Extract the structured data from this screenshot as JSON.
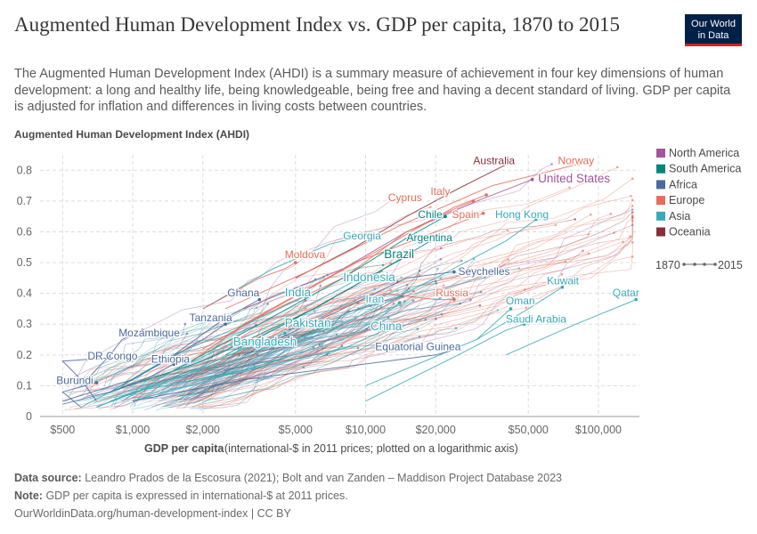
{
  "header": {
    "title": "Augmented Human Development Index vs. GDP per capita, 1870 to 2015",
    "subtitle": "The Augmented Human Development Index (AHDI) is a summary measure of achievement in four key dimensions of human development: a long and healthy life, being knowledgeable, being free and having a decent standard of living. GDP per capita is adjusted for inflation and differences in living costs between countries.",
    "logo_line1": "Our World",
    "logo_line2": "in Data"
  },
  "footer": {
    "source_label": "Data source:",
    "source_text": "Leandro Prados de la Escosura (2021); Bolt and van Zanden – Maddison Project Database 2023",
    "note_label": "Note:",
    "note_text": "GDP per capita is expressed in international-$ at 2011 prices.",
    "credit": "OurWorldinData.org/human-development-index | CC BY"
  },
  "chart_data": {
    "type": "scatter",
    "title": "Augmented Human Development Index vs. GDP per capita, 1870 to 2015",
    "ylabel": "Augmented Human Development Index (AHDI)",
    "xlabel": "GDP per capita",
    "xlabel_note": "(international-$ in 2011 prices; plotted on a logarithmic axis)",
    "x_scale": "log",
    "xlim": [
      400,
      150000
    ],
    "ylim": [
      0,
      0.85
    ],
    "x_ticks": [
      {
        "value": 500,
        "label": "$500"
      },
      {
        "value": 1000,
        "label": "$1,000"
      },
      {
        "value": 2000,
        "label": "$2,000"
      },
      {
        "value": 5000,
        "label": "$5,000"
      },
      {
        "value": 10000,
        "label": "$10,000"
      },
      {
        "value": 20000,
        "label": "$20,000"
      },
      {
        "value": 50000,
        "label": "$50,000"
      },
      {
        "value": 100000,
        "label": "$100,000"
      }
    ],
    "y_ticks": [
      {
        "value": 0,
        "label": "0"
      },
      {
        "value": 0.1,
        "label": "0.1"
      },
      {
        "value": 0.2,
        "label": "0.2"
      },
      {
        "value": 0.3,
        "label": "0.3"
      },
      {
        "value": 0.4,
        "label": "0.4"
      },
      {
        "value": 0.5,
        "label": "0.5"
      },
      {
        "value": 0.6,
        "label": "0.6"
      },
      {
        "value": 0.7,
        "label": "0.7"
      },
      {
        "value": 0.8,
        "label": "0.8"
      }
    ],
    "grid": true,
    "legend_position": "right",
    "legend": [
      {
        "name": "North America",
        "color": "#a2559c"
      },
      {
        "name": "South America",
        "color": "#00847e"
      },
      {
        "name": "Africa",
        "color": "#4c6a9c"
      },
      {
        "name": "Europe",
        "color": "#e56e5a"
      },
      {
        "name": "Asia",
        "color": "#38aaba"
      },
      {
        "name": "Oceania",
        "color": "#883039"
      }
    ],
    "time_legend": {
      "start": "1870",
      "end": "2015"
    },
    "series": [
      {
        "name": "Australia",
        "region": "Oceania",
        "x": [
          5000,
          9000,
          15000,
          25000,
          43000
        ],
        "y": [
          0.45,
          0.55,
          0.65,
          0.74,
          0.83
        ]
      },
      {
        "name": "Norway",
        "region": "Europe",
        "x": [
          2500,
          6000,
          14000,
          35000,
          82000
        ],
        "y": [
          0.35,
          0.48,
          0.62,
          0.75,
          0.82
        ]
      },
      {
        "name": "United States",
        "region": "North America",
        "x": [
          3000,
          8000,
          15000,
          30000,
          52000
        ],
        "y": [
          0.35,
          0.48,
          0.6,
          0.7,
          0.77
        ]
      },
      {
        "name": "Italy",
        "region": "Europe",
        "x": [
          2000,
          4000,
          12000,
          24000,
          33000
        ],
        "y": [
          0.22,
          0.35,
          0.55,
          0.68,
          0.72
        ]
      },
      {
        "name": "Cyprus",
        "region": "Europe",
        "x": [
          3000,
          8000,
          15000,
          25000,
          29000
        ],
        "y": [
          0.3,
          0.45,
          0.6,
          0.68,
          0.7
        ]
      },
      {
        "name": "Spain",
        "region": "Europe",
        "x": [
          1800,
          3000,
          9000,
          20000,
          32000
        ],
        "y": [
          0.18,
          0.3,
          0.5,
          0.6,
          0.66
        ]
      },
      {
        "name": "Chile",
        "region": "South America",
        "x": [
          1500,
          3500,
          8000,
          15000,
          22000
        ],
        "y": [
          0.15,
          0.3,
          0.45,
          0.58,
          0.65
        ]
      },
      {
        "name": "Hong Kong",
        "region": "Asia",
        "x": [
          3000,
          8000,
          20000,
          40000,
          54000
        ],
        "y": [
          0.2,
          0.3,
          0.45,
          0.57,
          0.64
        ]
      },
      {
        "name": "Georgia",
        "region": "Asia",
        "x": [
          2000,
          4000,
          7000,
          9000
        ],
        "y": [
          0.35,
          0.48,
          0.56,
          0.58
        ]
      },
      {
        "name": "Argentina",
        "region": "South America",
        "x": [
          2500,
          6000,
          12000,
          18000,
          19000
        ],
        "y": [
          0.2,
          0.35,
          0.48,
          0.56,
          0.57
        ]
      },
      {
        "name": "Brazil",
        "region": "South America",
        "x": [
          800,
          2000,
          6000,
          12000,
          15000
        ],
        "y": [
          0.08,
          0.18,
          0.35,
          0.48,
          0.52
        ]
      },
      {
        "name": "Moldova",
        "region": "Europe",
        "x": [
          2000,
          3500,
          4500,
          5000
        ],
        "y": [
          0.35,
          0.45,
          0.48,
          0.5
        ]
      },
      {
        "name": "Seychelles",
        "region": "Africa",
        "x": [
          3000,
          8000,
          15000,
          24000
        ],
        "y": [
          0.2,
          0.35,
          0.45,
          0.47
        ]
      },
      {
        "name": "Indonesia",
        "region": "Asia",
        "x": [
          900,
          1500,
          4000,
          8000,
          10000
        ],
        "y": [
          0.05,
          0.15,
          0.3,
          0.42,
          0.46
        ]
      },
      {
        "name": "Kuwait",
        "region": "Asia",
        "x": [
          30000,
          50000,
          70000
        ],
        "y": [
          0.25,
          0.35,
          0.42
        ]
      },
      {
        "name": "Ghana",
        "region": "Africa",
        "x": [
          900,
          1500,
          2500,
          3500
        ],
        "y": [
          0.1,
          0.2,
          0.32,
          0.38
        ]
      },
      {
        "name": "India",
        "region": "Asia",
        "x": [
          600,
          800,
          1500,
          3500,
          5500
        ],
        "y": [
          0.03,
          0.08,
          0.2,
          0.32,
          0.39
        ]
      },
      {
        "name": "Russia",
        "region": "Europe",
        "x": [
          2000,
          5000,
          12000,
          20000,
          24000
        ],
        "y": [
          0.15,
          0.3,
          0.4,
          0.38,
          0.38
        ]
      },
      {
        "name": "Iran",
        "region": "Asia",
        "x": [
          1000,
          3000,
          8000,
          12000,
          14000
        ],
        "y": [
          0.05,
          0.15,
          0.25,
          0.33,
          0.37
        ]
      },
      {
        "name": "Qatar",
        "region": "Asia",
        "x": [
          40000,
          80000,
          145000
        ],
        "y": [
          0.2,
          0.3,
          0.38
        ]
      },
      {
        "name": "Oman",
        "region": "Asia",
        "x": [
          10000,
          30000,
          42000
        ],
        "y": [
          0.1,
          0.25,
          0.35
        ]
      },
      {
        "name": "Tanzania",
        "region": "Africa",
        "x": [
          500,
          1000,
          2000,
          2500
        ],
        "y": [
          0.05,
          0.12,
          0.25,
          0.3
        ]
      },
      {
        "name": "Saudi Arabia",
        "region": "Asia",
        "x": [
          10000,
          25000,
          40000,
          48000
        ],
        "y": [
          0.05,
          0.2,
          0.28,
          0.3
        ]
      },
      {
        "name": "Pakistan",
        "region": "Asia",
        "x": [
          800,
          1500,
          3000,
          4500
        ],
        "y": [
          0.05,
          0.12,
          0.22,
          0.27
        ]
      },
      {
        "name": "China",
        "region": "Asia",
        "x": [
          700,
          1000,
          3000,
          8000,
          12000
        ],
        "y": [
          0.03,
          0.08,
          0.15,
          0.22,
          0.28
        ]
      },
      {
        "name": "Mozambique",
        "region": "Africa",
        "x": [
          600,
          800,
          900,
          1100
        ],
        "y": [
          0.1,
          0.2,
          0.25,
          0.28
        ]
      },
      {
        "name": "Bangladesh",
        "region": "Asia",
        "x": [
          700,
          1200,
          2500,
          3000
        ],
        "y": [
          0.03,
          0.1,
          0.18,
          0.23
        ]
      },
      {
        "name": "Equatorial Guinea",
        "region": "Africa",
        "x": [
          1000,
          3000,
          20000,
          25000
        ],
        "y": [
          0.05,
          0.12,
          0.2,
          0.22
        ]
      },
      {
        "name": "DR Congo",
        "region": "Africa",
        "x": [
          700,
          600,
          500,
          800
        ],
        "y": [
          0.05,
          0.12,
          0.18,
          0.19
        ]
      },
      {
        "name": "Ethiopia",
        "region": "Africa",
        "x": [
          500,
          800,
          1200,
          1500
        ],
        "y": [
          0.04,
          0.08,
          0.13,
          0.17
        ]
      },
      {
        "name": "Burundi",
        "region": "Africa",
        "x": [
          600,
          500,
          700
        ],
        "y": [
          0.03,
          0.08,
          0.11
        ]
      }
    ],
    "labels": [
      {
        "text": "Australia",
        "region": "Oceania",
        "x": 29000,
        "y": 0.82
      },
      {
        "text": "Norway",
        "region": "Europe",
        "x": 67000,
        "y": 0.82
      },
      {
        "text": "United States",
        "region": "North America",
        "x": 55000,
        "y": 0.76
      },
      {
        "text": "Italy",
        "region": "Europe",
        "x": 19000,
        "y": 0.72
      },
      {
        "text": "Cyprus",
        "region": "Europe",
        "x": 12500,
        "y": 0.7
      },
      {
        "text": "Spain",
        "region": "Europe",
        "x": 23500,
        "y": 0.645
      },
      {
        "text": "Chile",
        "region": "South America",
        "x": 16800,
        "y": 0.645
      },
      {
        "text": "Hong Kong",
        "region": "Asia",
        "x": 36000,
        "y": 0.645
      },
      {
        "text": "Georgia",
        "region": "Asia",
        "x": 8000,
        "y": 0.575
      },
      {
        "text": "Argentina",
        "region": "South America",
        "x": 15000,
        "y": 0.57
      },
      {
        "text": "Brazil",
        "region": "South America",
        "x": 12000,
        "y": 0.515
      },
      {
        "text": "Moldova",
        "region": "Europe",
        "x": 4500,
        "y": 0.515
      },
      {
        "text": "Seychelles",
        "region": "Africa",
        "x": 25000,
        "y": 0.46
      },
      {
        "text": "Indonesia",
        "region": "Asia",
        "x": 8000,
        "y": 0.44
      },
      {
        "text": "Kuwait",
        "region": "Asia",
        "x": 60000,
        "y": 0.43
      },
      {
        "text": "Ghana",
        "region": "Africa",
        "x": 2550,
        "y": 0.39
      },
      {
        "text": "India",
        "region": "Asia",
        "x": 4500,
        "y": 0.39
      },
      {
        "text": "Russia",
        "region": "Europe",
        "x": 20000,
        "y": 0.39
      },
      {
        "text": "Qatar",
        "region": "Asia",
        "x": 115000,
        "y": 0.39
      },
      {
        "text": "Iran",
        "region": "Asia",
        "x": 10000,
        "y": 0.37
      },
      {
        "text": "Oman",
        "region": "Asia",
        "x": 40000,
        "y": 0.365
      },
      {
        "text": "Tanzania",
        "region": "Africa",
        "x": 1750,
        "y": 0.31
      },
      {
        "text": "Saudi Arabia",
        "region": "Asia",
        "x": 40000,
        "y": 0.305
      },
      {
        "text": "Pakistan",
        "region": "Asia",
        "x": 4500,
        "y": 0.29
      },
      {
        "text": "China",
        "region": "Asia",
        "x": 10500,
        "y": 0.28
      },
      {
        "text": "Mozambique",
        "region": "Africa",
        "x": 870,
        "y": 0.26
      },
      {
        "text": "Bangladesh",
        "region": "Asia",
        "x": 2700,
        "y": 0.23
      },
      {
        "text": "Equatorial Guinea",
        "region": "Africa",
        "x": 11000,
        "y": 0.215
      },
      {
        "text": "DR Congo",
        "region": "Africa",
        "x": 640,
        "y": 0.185
      },
      {
        "text": "Ethiopia",
        "region": "Africa",
        "x": 1200,
        "y": 0.175
      },
      {
        "text": "Burundi",
        "region": "Africa",
        "x": 470,
        "y": 0.105
      }
    ]
  }
}
